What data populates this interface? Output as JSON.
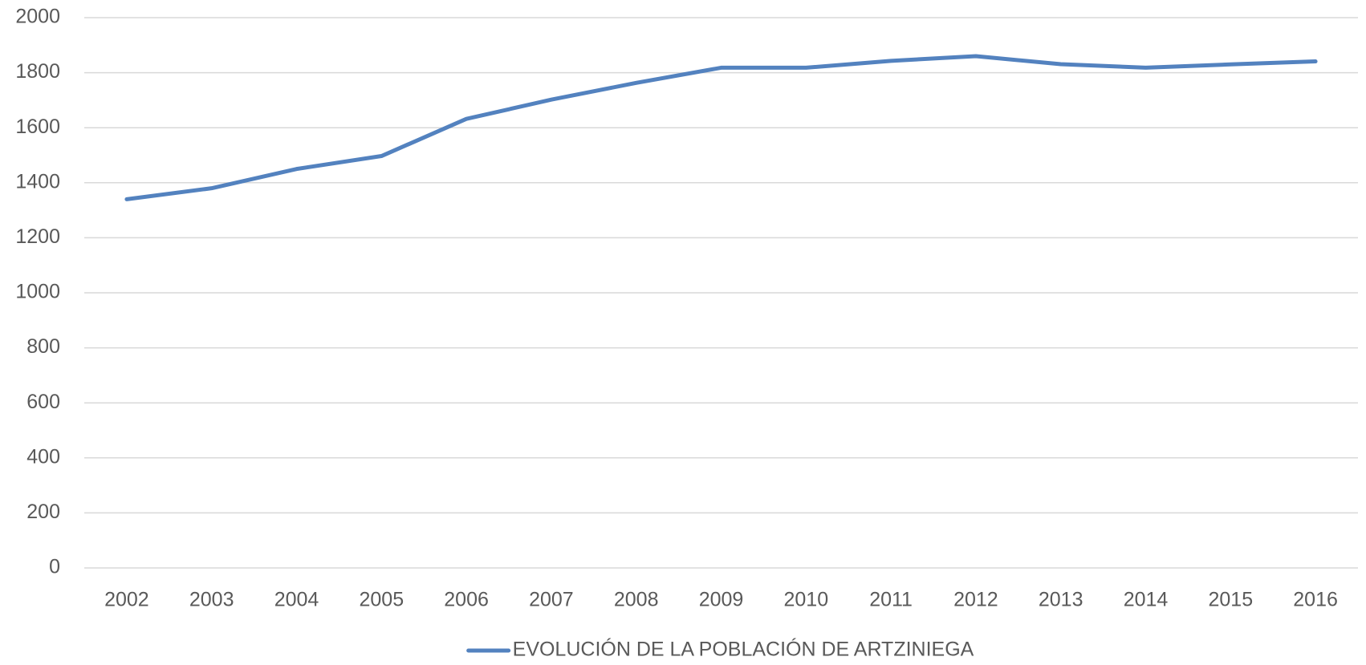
{
  "chart_data": {
    "type": "line",
    "categories": [
      "2002",
      "2003",
      "2004",
      "2005",
      "2006",
      "2007",
      "2008",
      "2009",
      "2010",
      "2011",
      "2012",
      "2013",
      "2014",
      "2015",
      "2016"
    ],
    "series": [
      {
        "name": "EVOLUCIÓN DE LA POBLACIÓN DE ARTZINIEGA",
        "color": "#5382bf",
        "values": [
          1340,
          1380,
          1450,
          1497,
          1632,
          1702,
          1763,
          1818,
          1818,
          1843,
          1860,
          1831,
          1818,
          1830,
          1841
        ]
      }
    ],
    "ylim": [
      0,
      2000
    ],
    "yticks": [
      0,
      200,
      400,
      600,
      800,
      1000,
      1200,
      1400,
      1600,
      1800,
      2000
    ],
    "grid": true,
    "legend": "bottom"
  }
}
